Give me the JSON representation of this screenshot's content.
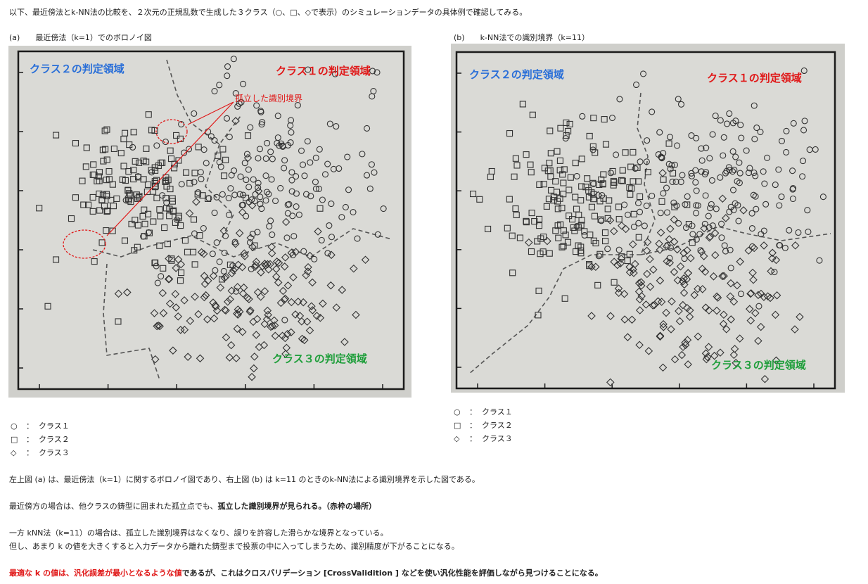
{
  "intro": "以下、最近傍法とk-NN法の比較を、２次元の正規乱数で生成した３クラス（○、□、◇で表示）のシミュレーションデータの具体例で確認してみる。",
  "figure_a": {
    "caption": "(a)　　最近傍法（k=1）でのボロノイ図",
    "region_class2": "クラス２の判定領域",
    "region_class1": "クラス１の判定領域",
    "region_class3": "クラス３の判定領域",
    "annotation": "孤立した識別境界"
  },
  "figure_b": {
    "caption": "(b)　　k-NN法での識別境界（k=11）",
    "region_class2": "クラス２の判定領域",
    "region_class1": "クラス１の判定領域",
    "region_class3": "クラス３の判定領域"
  },
  "legend": [
    {
      "symbol": "○",
      "sep": "：",
      "label": "クラス１"
    },
    {
      "symbol": "□",
      "sep": "：",
      "label": "クラス２"
    },
    {
      "symbol": "◇",
      "sep": "：",
      "label": "クラス３"
    }
  ],
  "paragraph1": "左上図 (a) は、最近傍法（k=1）に関するボロノイ図であり、右上図 (b) は k=11 のときのk-NN法による識別境界を示した図である。",
  "paragraph2": {
    "normal": "最近傍方の場合は、他クラスの鋳型に囲まれた孤立点でも、",
    "bold": "孤立した識別境界が見られる。（赤枠の場所）"
  },
  "paragraph3": [
    "一方 kNN法（k=11）の場合は、孤立した識別境界はなくなり、誤りを許容した滑らかな境界となっている。",
    "但し、あまり k の値を大きくすると入力データから離れた鋳型まで投票の中に入ってしまうため、識別精度が下がることになる。"
  ],
  "paragraph4": {
    "red": "最適な k の値は、汎化誤差が最小となるような値",
    "bold": "であるが、これはクロスバリデーション [CrossValidition ] などを使い汎化性能を評価しながら見つけることになる。"
  },
  "colors": {
    "class2_region": "#2a6fd8",
    "class1_region": "#e01818",
    "class3_region": "#1e9e3a"
  }
}
